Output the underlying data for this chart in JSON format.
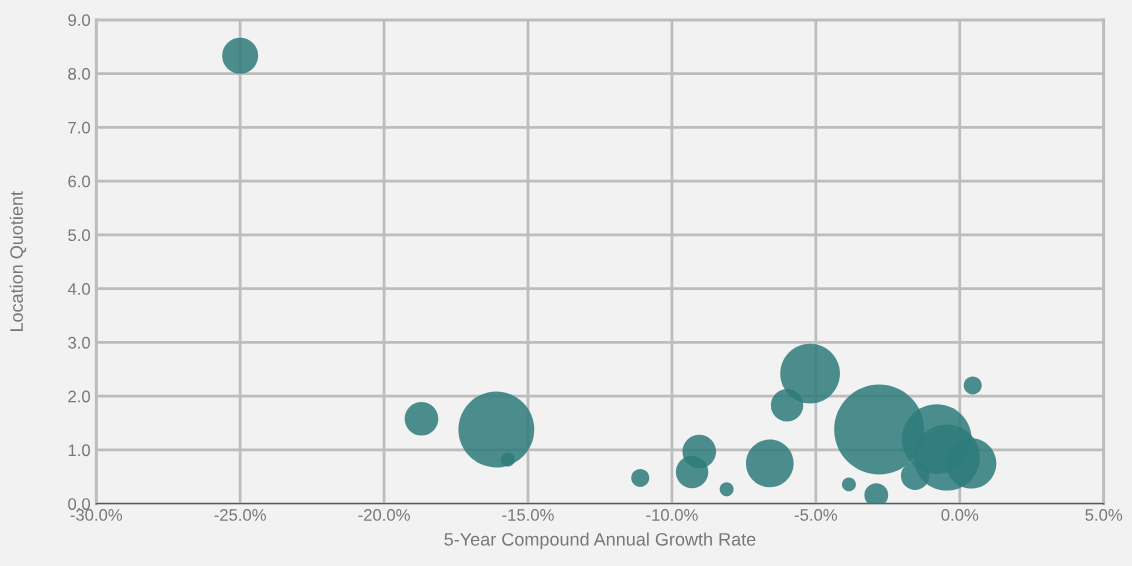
{
  "chart_data": {
    "type": "bubble",
    "xlabel": "5-Year Compound Annual Growth Rate",
    "ylabel": "Location Quotient",
    "x": [
      -25.0,
      -18.7,
      -16.1,
      -15.7,
      -11.1,
      -9.3,
      -9.05,
      -8.1,
      -6.6,
      -6.0,
      -5.2,
      -3.85,
      -2.9,
      -2.8,
      -1.55,
      -0.8,
      -0.45,
      0.4,
      0.45
    ],
    "values": [
      8.33,
      1.58,
      1.38,
      0.82,
      0.48,
      0.59,
      0.97,
      0.27,
      0.75,
      1.83,
      2.42,
      0.36,
      0.16,
      1.38,
      0.52,
      1.2,
      0.86,
      0.75,
      2.2
    ],
    "sizes": [
      0.16,
      0.14,
      0.71,
      0.024,
      0.04,
      0.13,
      0.14,
      0.024,
      0.28,
      0.13,
      0.44,
      0.024,
      0.07,
      1,
      0.1,
      0.6,
      0.54,
      0.31,
      0.04
    ],
    "color": "#2e7b7b",
    "xlim": [
      -30,
      5
    ],
    "xticks": [
      {
        "value": -30,
        "label": "-30.0%"
      },
      {
        "value": -25,
        "label": "-25.0%"
      },
      {
        "value": -20,
        "label": "-20.0%"
      },
      {
        "value": -15,
        "label": "-15.0%"
      },
      {
        "value": -10,
        "label": "-10.0%"
      },
      {
        "value": -5,
        "label": "-5.0%"
      },
      {
        "value": 0,
        "label": "0.0%"
      },
      {
        "value": 5,
        "label": "5.0%"
      }
    ],
    "ylim": [
      0,
      9
    ],
    "yticks": [
      {
        "value": 0,
        "label": "0.0"
      },
      {
        "value": 1,
        "label": "1.0"
      },
      {
        "value": 2,
        "label": "2.0"
      },
      {
        "value": 3,
        "label": "3.0"
      },
      {
        "value": 4,
        "label": "4.0"
      },
      {
        "value": 5,
        "label": "5.0"
      },
      {
        "value": 6,
        "label": "6.0"
      },
      {
        "value": 7,
        "label": "7.0"
      },
      {
        "value": 8,
        "label": "8.0"
      },
      {
        "value": 9,
        "label": "9.0"
      }
    ],
    "grid": true
  }
}
